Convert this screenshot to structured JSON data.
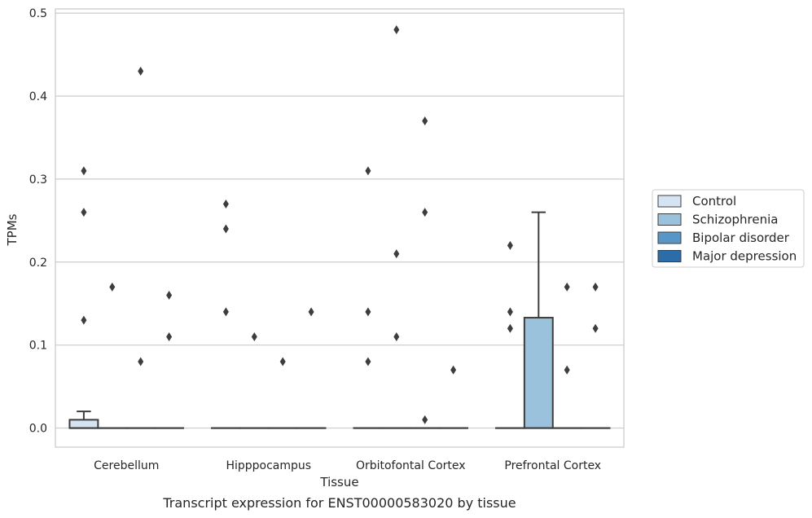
{
  "chart_data": {
    "type": "box",
    "xlabel": "Tissue",
    "ylabel": "TPMs",
    "caption": "Transcript expression for ENST00000583020 by tissue",
    "ylim": [
      -0.023,
      0.505
    ],
    "yticks": [
      0.0,
      0.1,
      0.2,
      0.3,
      0.4,
      0.5
    ],
    "ytick_labels": [
      "0.0",
      "0.1",
      "0.2",
      "0.3",
      "0.4",
      "0.5"
    ],
    "grid": "horizontal",
    "legend_position": "right",
    "categories": [
      "Cerebellum",
      "Hipppocampus",
      "Orbitofontal Cortex",
      "Prefrontal Cortex"
    ],
    "series": [
      {
        "name": "Control",
        "color": "#d4e4f3",
        "boxes": [
          {
            "q1": 0.0,
            "median": 0.0,
            "q3": 0.01,
            "whisker_low": 0.0,
            "whisker_high": 0.02,
            "outliers": [
              0.13,
              0.26,
              0.31
            ]
          },
          {
            "q1": 0.0,
            "median": 0.0,
            "q3": 0.0,
            "whisker_low": 0.0,
            "whisker_high": 0.0,
            "outliers": [
              0.14,
              0.24,
              0.27
            ]
          },
          {
            "q1": 0.0,
            "median": 0.0,
            "q3": 0.0,
            "whisker_low": 0.0,
            "whisker_high": 0.0,
            "outliers": [
              0.08,
              0.14,
              0.31
            ]
          },
          {
            "q1": 0.0,
            "median": 0.0,
            "q3": 0.0,
            "whisker_low": 0.0,
            "whisker_high": 0.0,
            "outliers": [
              0.12,
              0.14,
              0.22
            ]
          }
        ]
      },
      {
        "name": "Schizophrenia",
        "color": "#9bc2dc",
        "boxes": [
          {
            "q1": 0.0,
            "median": 0.0,
            "q3": 0.0,
            "whisker_low": 0.0,
            "whisker_high": 0.0,
            "outliers": [
              0.17
            ]
          },
          {
            "q1": 0.0,
            "median": 0.0,
            "q3": 0.0,
            "whisker_low": 0.0,
            "whisker_high": 0.0,
            "outliers": [
              0.11
            ]
          },
          {
            "q1": 0.0,
            "median": 0.0,
            "q3": 0.0,
            "whisker_low": 0.0,
            "whisker_high": 0.0,
            "outliers": [
              0.11,
              0.21,
              0.48
            ]
          },
          {
            "q1": 0.0,
            "median": 0.0,
            "q3": 0.133,
            "whisker_low": 0.0,
            "whisker_high": 0.26,
            "outliers": []
          }
        ]
      },
      {
        "name": "Bipolar disorder",
        "color": "#5995c5",
        "boxes": [
          {
            "q1": 0.0,
            "median": 0.0,
            "q3": 0.0,
            "whisker_low": 0.0,
            "whisker_high": 0.0,
            "outliers": [
              0.08,
              0.43
            ]
          },
          {
            "q1": 0.0,
            "median": 0.0,
            "q3": 0.0,
            "whisker_low": 0.0,
            "whisker_high": 0.0,
            "outliers": [
              0.08
            ]
          },
          {
            "q1": 0.0,
            "median": 0.0,
            "q3": 0.0,
            "whisker_low": 0.0,
            "whisker_high": 0.0,
            "outliers": [
              0.01,
              0.26,
              0.37
            ]
          },
          {
            "q1": 0.0,
            "median": 0.0,
            "q3": 0.0,
            "whisker_low": 0.0,
            "whisker_high": 0.0,
            "outliers": [
              0.07,
              0.17
            ]
          }
        ]
      },
      {
        "name": "Major depression",
        "color": "#2c6ca9",
        "boxes": [
          {
            "q1": 0.0,
            "median": 0.0,
            "q3": 0.0,
            "whisker_low": 0.0,
            "whisker_high": 0.0,
            "outliers": [
              0.11,
              0.16
            ]
          },
          {
            "q1": 0.0,
            "median": 0.0,
            "q3": 0.0,
            "whisker_low": 0.0,
            "whisker_high": 0.0,
            "outliers": [
              0.14
            ]
          },
          {
            "q1": 0.0,
            "median": 0.0,
            "q3": 0.0,
            "whisker_low": 0.0,
            "whisker_high": 0.0,
            "outliers": [
              0.07
            ]
          },
          {
            "q1": 0.0,
            "median": 0.0,
            "q3": 0.0,
            "whisker_low": 0.0,
            "whisker_high": 0.0,
            "outliers": [
              0.12,
              0.17
            ]
          }
        ]
      }
    ]
  }
}
